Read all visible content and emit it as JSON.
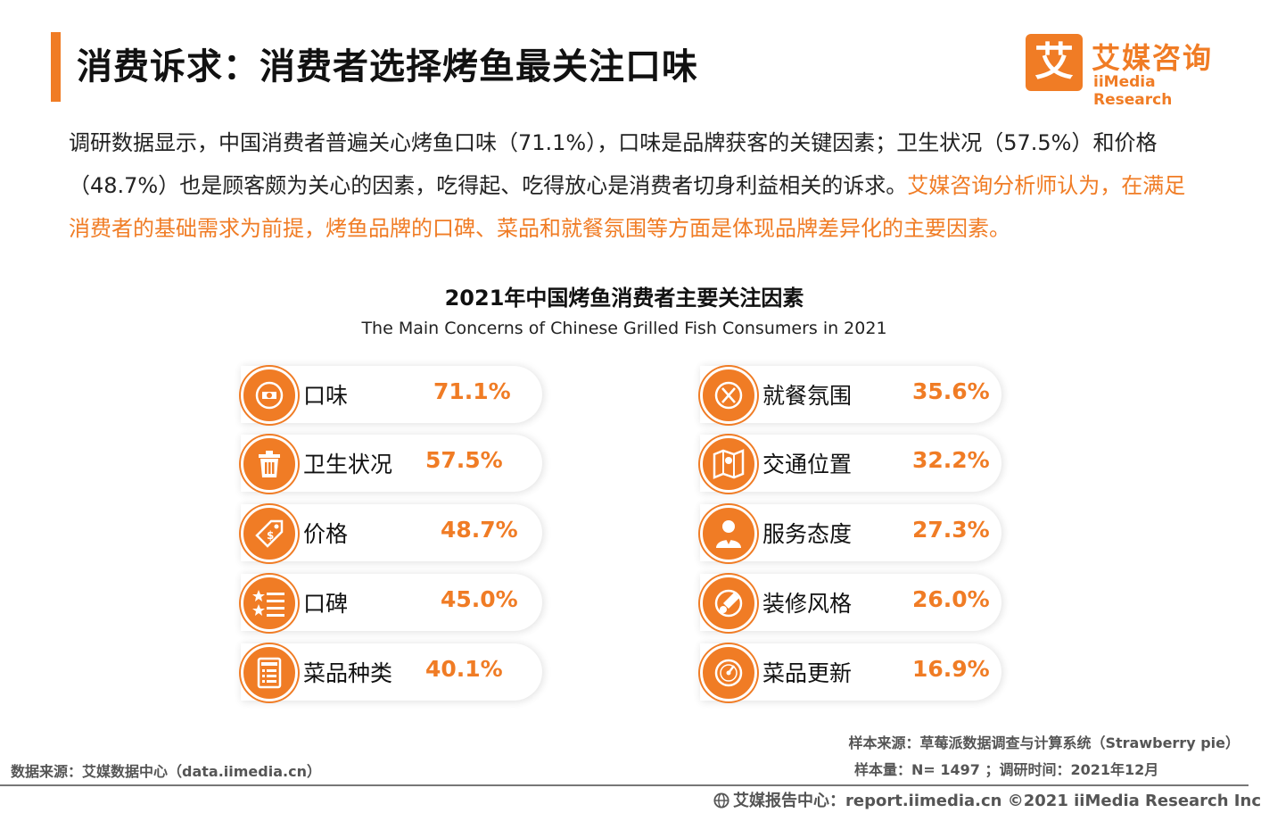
{
  "header": {
    "title": "消费诉求：消费者选择烤鱼最关注口味",
    "logo_mark": "艾",
    "logo_cn": "艾媒咨询",
    "logo_en": "iiMedia Research"
  },
  "intro": {
    "text_black": "调研数据显示，中国消费者普遍关心烤鱼口味（71.1%），口味是品牌获客的关键因素；卫生状况（57.5%）和价格（48.7%）也是顾客颇为关心的因素，吃得起、吃得放心是消费者切身利益相关的诉求。",
    "text_orange": "艾媒咨询分析师认为，在满足消费者的基础需求为前提，烤鱼品牌的口碑、菜品和就餐氛围等方面是体现品牌差异化的主要因素。"
  },
  "chart_data": {
    "type": "table",
    "title": "2021年中国烤鱼消费者主要关注因素",
    "subtitle": "The Main Concerns of Chinese  Grilled Fish Consumers in 2021",
    "left": [
      {
        "label": "口味",
        "value": "71.1%",
        "icon": "taste-icon"
      },
      {
        "label": "卫生状况",
        "value": "57.5%",
        "icon": "trash-bin-icon"
      },
      {
        "label": "价格",
        "value": "48.7%",
        "icon": "price-tag-icon"
      },
      {
        "label": "口碑",
        "value": "45.0%",
        "icon": "rating-list-icon"
      },
      {
        "label": "菜品种类",
        "value": "40.1%",
        "icon": "menu-icon"
      }
    ],
    "right": [
      {
        "label": "就餐氛围",
        "value": "35.6%",
        "icon": "dining-icon"
      },
      {
        "label": "交通位置",
        "value": "32.2%",
        "icon": "map-icon"
      },
      {
        "label": "服务态度",
        "value": "27.3%",
        "icon": "waiter-icon"
      },
      {
        "label": "装修风格",
        "value": "26.0%",
        "icon": "paint-brush-icon"
      },
      {
        "label": "菜品更新",
        "value": "16.9%",
        "icon": "gauge-icon"
      }
    ]
  },
  "sources": {
    "data_source": "数据来源：艾媒数据中心（data.iimedia.cn）",
    "sample_source": "样本来源：草莓派数据调查与计算系统（Strawberry  pie）",
    "sample_size": "样本量：N= 1497 ；调研时间：2021年12月"
  },
  "footer": {
    "text": "艾媒报告中心：report.iimedia.cn   ©2021  iiMedia Research  Inc"
  },
  "colors": {
    "accent": "#f07c25"
  }
}
